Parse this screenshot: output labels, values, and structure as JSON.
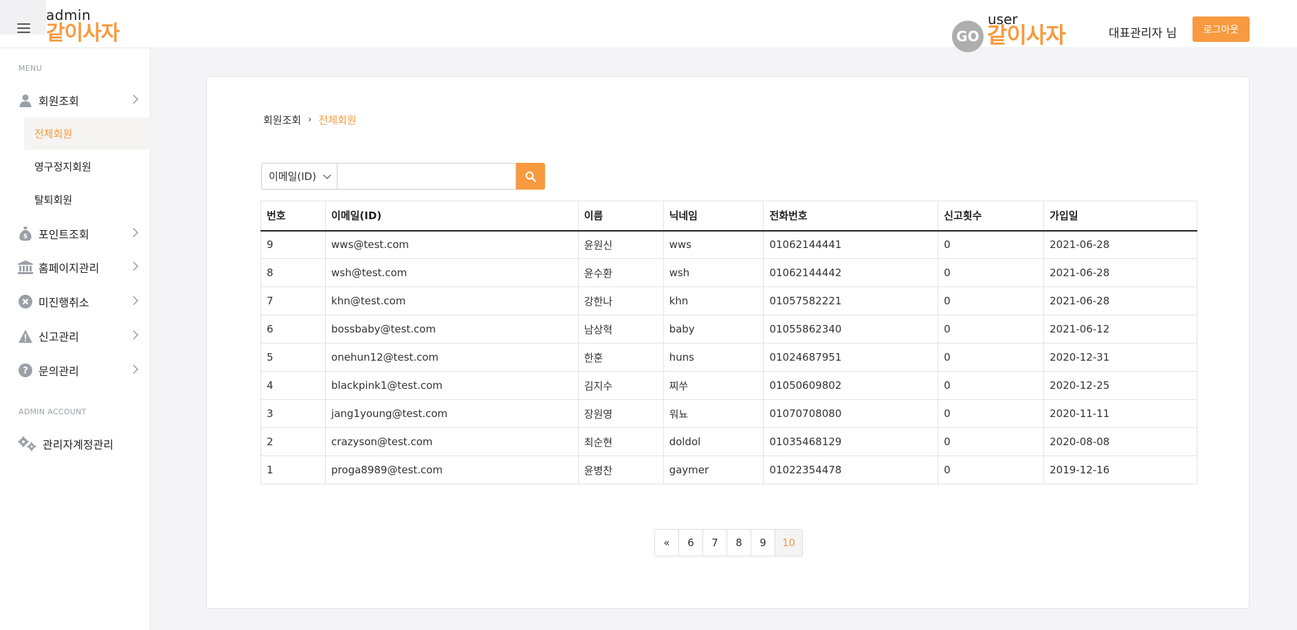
{
  "header": {
    "logo_small": "admin",
    "logo_big": "같이사자",
    "user_logo_go": "GO",
    "user_logo_small": "user",
    "user_logo_big": "같이사자",
    "admin_name": "대표관리자 님",
    "logout_label": "로그아웃"
  },
  "sidebar": {
    "menu_label": "MENU",
    "items": [
      {
        "label": "회원조회",
        "icon": "user-icon"
      },
      {
        "label": "포인트조회",
        "icon": "money-bag-icon"
      },
      {
        "label": "홈페이지관리",
        "icon": "bank-icon"
      },
      {
        "label": "미진행취소",
        "icon": "cancel-circle-icon"
      },
      {
        "label": "신고관리",
        "icon": "warning-icon"
      },
      {
        "label": "문의관리",
        "icon": "question-circle-icon"
      }
    ],
    "sub_items": [
      {
        "label": "전체회원",
        "active": true
      },
      {
        "label": "영구정지회원",
        "active": false
      },
      {
        "label": "탈퇴회원",
        "active": false
      }
    ],
    "admin_account_label": "ADMIN ACCOUNT",
    "admin_account_item": {
      "label": "관리자계정관리",
      "icon": "gears-icon"
    }
  },
  "breadcrumb": {
    "parent": "회원조회",
    "separator": "›",
    "current": "전체회원"
  },
  "search": {
    "selected_option": "이메일(ID)",
    "value": "",
    "placeholder": "",
    "button_icon": "search-icon"
  },
  "table": {
    "headers": [
      "번호",
      "이메일(ID)",
      "이름",
      "닉네임",
      "전화번호",
      "신고횟수",
      "가입일"
    ],
    "rows": [
      [
        "9",
        "wws@test.com",
        "윤원신",
        "wws",
        "01062144441",
        "0",
        "2021-06-28"
      ],
      [
        "8",
        "wsh@test.com",
        "윤수환",
        "wsh",
        "01062144442",
        "0",
        "2021-06-28"
      ],
      [
        "7",
        "khn@test.com",
        "강한나",
        "khn",
        "01057582221",
        "0",
        "2021-06-28"
      ],
      [
        "6",
        "bossbaby@test.com",
        "남상혁",
        "baby",
        "01055862340",
        "0",
        "2021-06-12"
      ],
      [
        "5",
        "onehun12@test.com",
        "한훈",
        "huns",
        "01024687951",
        "0",
        "2020-12-31"
      ],
      [
        "4",
        "blackpink1@test.com",
        "김지수",
        "찌쑤",
        "01050609802",
        "0",
        "2020-12-25"
      ],
      [
        "3",
        "jang1young@test.com",
        "장원영",
        "워뇨",
        "01070708080",
        "0",
        "2020-11-11"
      ],
      [
        "2",
        "crazyson@test.com",
        "최순현",
        "doldol",
        "01035468129",
        "0",
        "2020-08-08"
      ],
      [
        "1",
        "proga8989@test.com",
        "윤병찬",
        "gaymer",
        "01022354478",
        "0",
        "2019-12-16"
      ]
    ]
  },
  "pagination": {
    "prev_label": "«",
    "pages": [
      "6",
      "7",
      "8",
      "9",
      "10"
    ],
    "active_page": "10"
  },
  "colors": {
    "accent": "#f89a40",
    "sidebar_icon": "#9aa0a6",
    "background": "#f4f4f7"
  }
}
